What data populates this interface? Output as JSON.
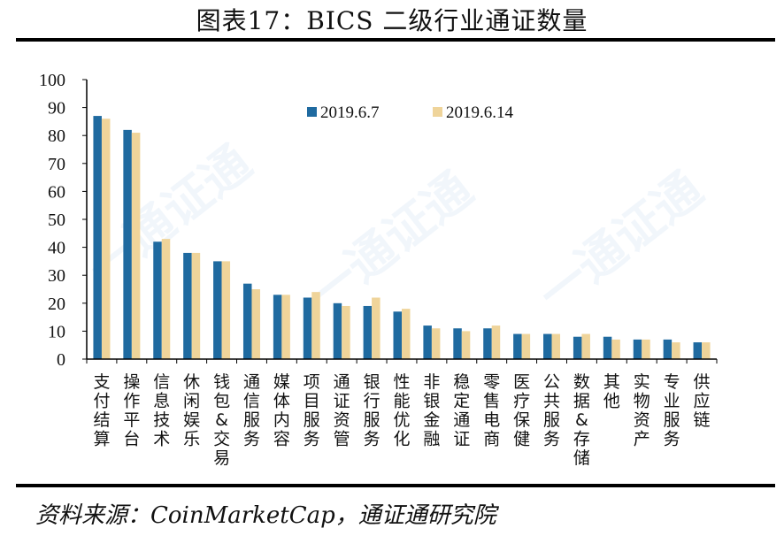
{
  "figure": {
    "title": "图表17：BICS 二级行业通证数量",
    "source": "资料来源：CoinMarketCap，通证通研究院",
    "watermark": "一通证通"
  },
  "colors": {
    "series1": "#1f6aa0",
    "series2": "#efd49a",
    "axis": "#000000"
  },
  "chart_data": {
    "type": "bar",
    "title": "图表17：BICS 二级行业通证数量",
    "xlabel": "",
    "ylabel": "",
    "ylim": [
      0,
      100
    ],
    "yticks": [
      0,
      10,
      20,
      30,
      40,
      50,
      60,
      70,
      80,
      90,
      100
    ],
    "grid": false,
    "legend_position": "top-center",
    "categories": [
      "支付结算",
      "操作平台",
      "信息技术",
      "休闲娱乐",
      "钱包&交易",
      "通信服务",
      "媒体内容",
      "项目服务",
      "通证资管",
      "银行服务",
      "性能优化",
      "非银金融",
      "稳定通证",
      "零售电商",
      "医疗保健",
      "公共服务",
      "数据&存储",
      "其他",
      "实物资产",
      "专业服务",
      "供应链"
    ],
    "series": [
      {
        "name": "2019.6.7",
        "values": [
          87,
          82,
          42,
          38,
          35,
          27,
          23,
          22,
          20,
          19,
          17,
          12,
          11,
          11,
          9,
          9,
          8,
          8,
          7,
          7,
          6
        ]
      },
      {
        "name": "2019.6.14",
        "values": [
          86,
          81,
          43,
          38,
          35,
          25,
          23,
          24,
          19,
          22,
          18,
          11,
          10,
          12,
          9,
          9,
          9,
          7,
          7,
          6,
          6
        ]
      }
    ]
  }
}
